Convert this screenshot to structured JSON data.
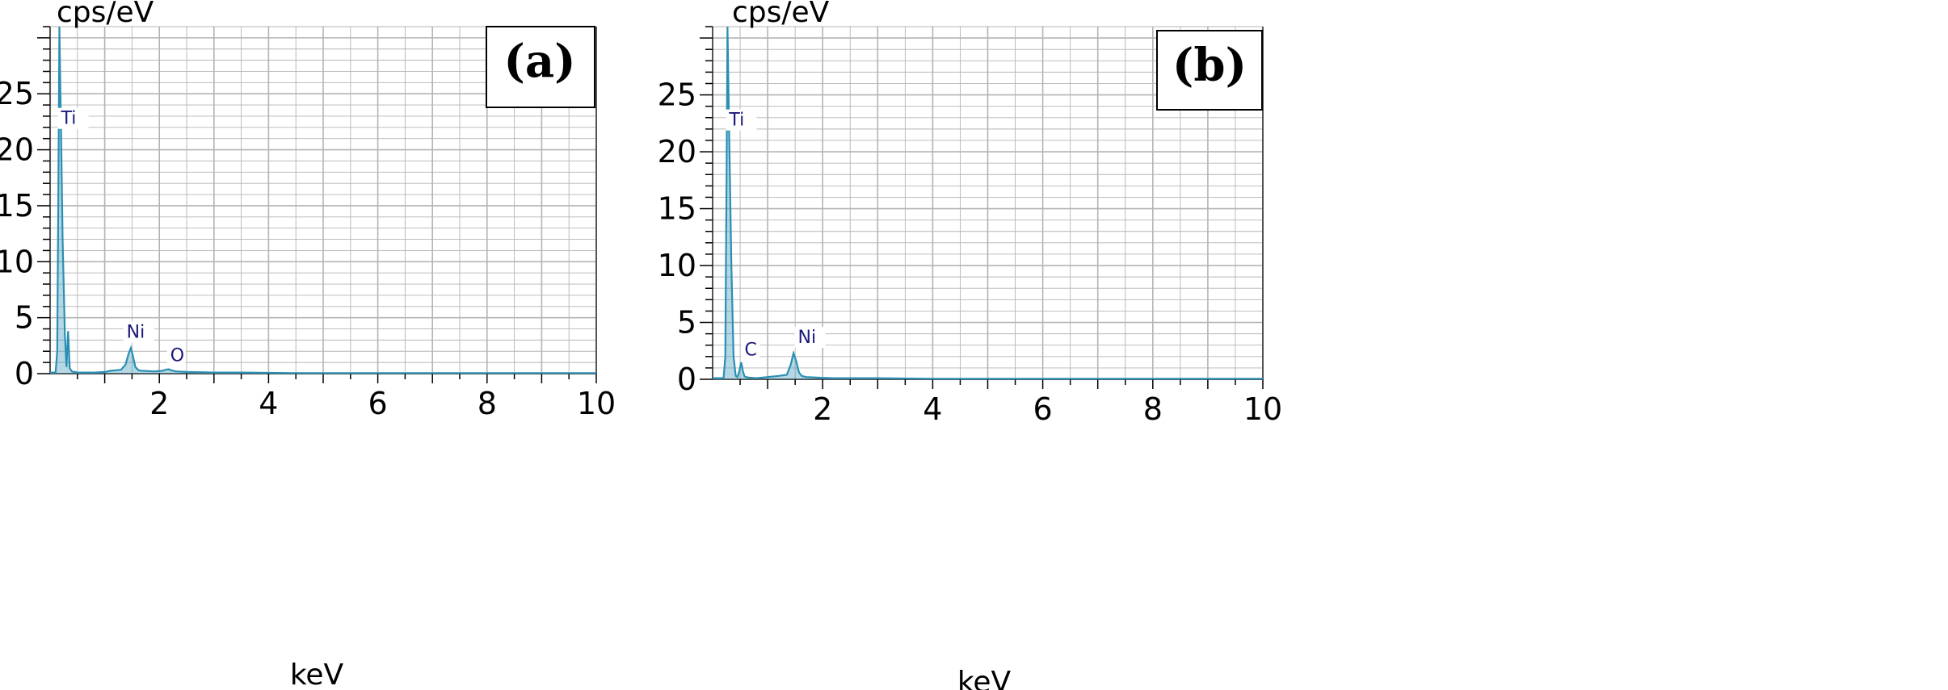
{
  "colors": {
    "spectrum": "#2b8fb3",
    "grid": "#b4b4b4",
    "axis": "#555555",
    "peak_label": "#1a1a7a"
  },
  "chart_data": [
    {
      "type": "line",
      "panel_label": "(a)",
      "ylabel": "cps/eV",
      "xlabel": "keV",
      "xlim": [
        0,
        10
      ],
      "ylim": [
        0,
        31
      ],
      "x_ticks": [
        "2",
        "4",
        "6",
        "8",
        "10"
      ],
      "y_ticks": [
        "0",
        "5",
        "10",
        "15",
        "20",
        "25"
      ],
      "grid": true,
      "series": [
        {
          "x": [
            0.0,
            0.1,
            0.13,
            0.15,
            0.17,
            0.2,
            0.23,
            0.27,
            0.3,
            0.33,
            0.36,
            0.4,
            0.43,
            0.45,
            0.5,
            0.6,
            0.8,
            1.0,
            1.1,
            1.2,
            1.3,
            1.38,
            1.44,
            1.48,
            1.52,
            1.56,
            1.62,
            1.7,
            1.9,
            2.05,
            2.12,
            2.17,
            2.22,
            2.3,
            2.5,
            3.0,
            3.5,
            4.5,
            6.0,
            8.0,
            10.0
          ],
          "y": [
            0.1,
            0.1,
            2.0,
            15.0,
            31.0,
            22.0,
            12.0,
            3.5,
            0.6,
            3.8,
            0.5,
            0.2,
            0.15,
            0.15,
            0.1,
            0.1,
            0.1,
            0.15,
            0.25,
            0.3,
            0.35,
            0.8,
            1.8,
            2.3,
            1.5,
            0.6,
            0.3,
            0.25,
            0.2,
            0.25,
            0.35,
            0.4,
            0.3,
            0.2,
            0.15,
            0.1,
            0.1,
            0.05,
            0.05,
            0.05,
            0.05
          ]
        }
      ],
      "annotations": [
        {
          "text": "Ti",
          "x": 0.2,
          "y": 22.3
        },
        {
          "text": "Ni",
          "x": 1.4,
          "y": 3.2
        },
        {
          "text": "O",
          "x": 2.2,
          "y": 1.1
        }
      ]
    },
    {
      "type": "line",
      "panel_label": "(b)",
      "ylabel": "cps/eV",
      "xlabel": "keV",
      "xlim": [
        0,
        10
      ],
      "ylim": [
        0,
        31
      ],
      "x_ticks": [
        "2",
        "4",
        "6",
        "8",
        "10"
      ],
      "y_ticks": [
        "0",
        "5",
        "10",
        "15",
        "20",
        "25"
      ],
      "grid": true,
      "series": [
        {
          "x": [
            0.0,
            0.2,
            0.23,
            0.25,
            0.27,
            0.3,
            0.34,
            0.38,
            0.42,
            0.45,
            0.48,
            0.52,
            0.55,
            0.58,
            0.65,
            0.8,
            1.0,
            1.2,
            1.35,
            1.42,
            1.47,
            1.52,
            1.57,
            1.62,
            1.7,
            1.9,
            2.2,
            3.0,
            4.0,
            6.0,
            8.0,
            10.0
          ],
          "y": [
            0.1,
            0.1,
            2.0,
            15.0,
            31.0,
            22.0,
            10.0,
            2.0,
            0.3,
            0.2,
            0.6,
            1.5,
            0.7,
            0.25,
            0.15,
            0.1,
            0.2,
            0.3,
            0.4,
            1.3,
            2.3,
            1.6,
            0.6,
            0.3,
            0.2,
            0.15,
            0.1,
            0.1,
            0.05,
            0.05,
            0.05,
            0.05
          ]
        }
      ],
      "annotations": [
        {
          "text": "Ti",
          "x": 0.3,
          "y": 22.3
        },
        {
          "text": "C",
          "x": 0.58,
          "y": 2.1
        },
        {
          "text": "Ni",
          "x": 1.55,
          "y": 3.2
        }
      ]
    }
  ]
}
